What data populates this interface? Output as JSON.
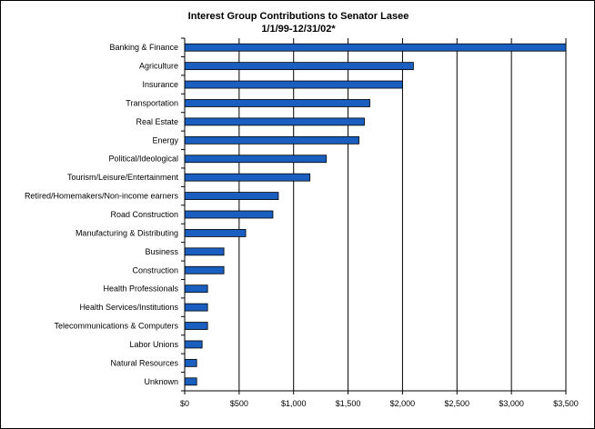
{
  "chart_data": {
    "type": "bar",
    "orientation": "horizontal",
    "title": "Interest Group Contributions to Senator Lasee",
    "subtitle": "1/1/99-12/31/02*",
    "xlabel": "",
    "ylabel": "",
    "categories": [
      "Banking & Finance",
      "Agriculture",
      "Insurance",
      "Transportation",
      "Real Estate",
      "Energy",
      "Political/Ideological",
      "Tourism/Leisure/Entertainment",
      "Retired/Homemakers/Non-income earners",
      "Road Construction",
      "Manufacturing & Distributing",
      "Business",
      "Construction",
      "Health Professionals",
      "Health Services/Institutions",
      "Telecommunications & Computers",
      "Labor Unions",
      "Natural Resources",
      "Unknown"
    ],
    "values": [
      3500,
      2100,
      2000,
      1700,
      1650,
      1600,
      1300,
      1150,
      860,
      810,
      560,
      360,
      360,
      210,
      210,
      210,
      160,
      110,
      110
    ],
    "xlim": [
      0,
      3500
    ],
    "ticks": [
      0,
      500,
      1000,
      1500,
      2000,
      2500,
      3000,
      3500
    ],
    "tick_labels": [
      "$0",
      "$500",
      "$1,000",
      "$1,500",
      "$2,000",
      "$2,500",
      "$3,000",
      "$3,500"
    ],
    "grid": "vertical",
    "legend": "none",
    "bar_color": "#1a5fbf",
    "bar_edge_color": "#000000"
  }
}
